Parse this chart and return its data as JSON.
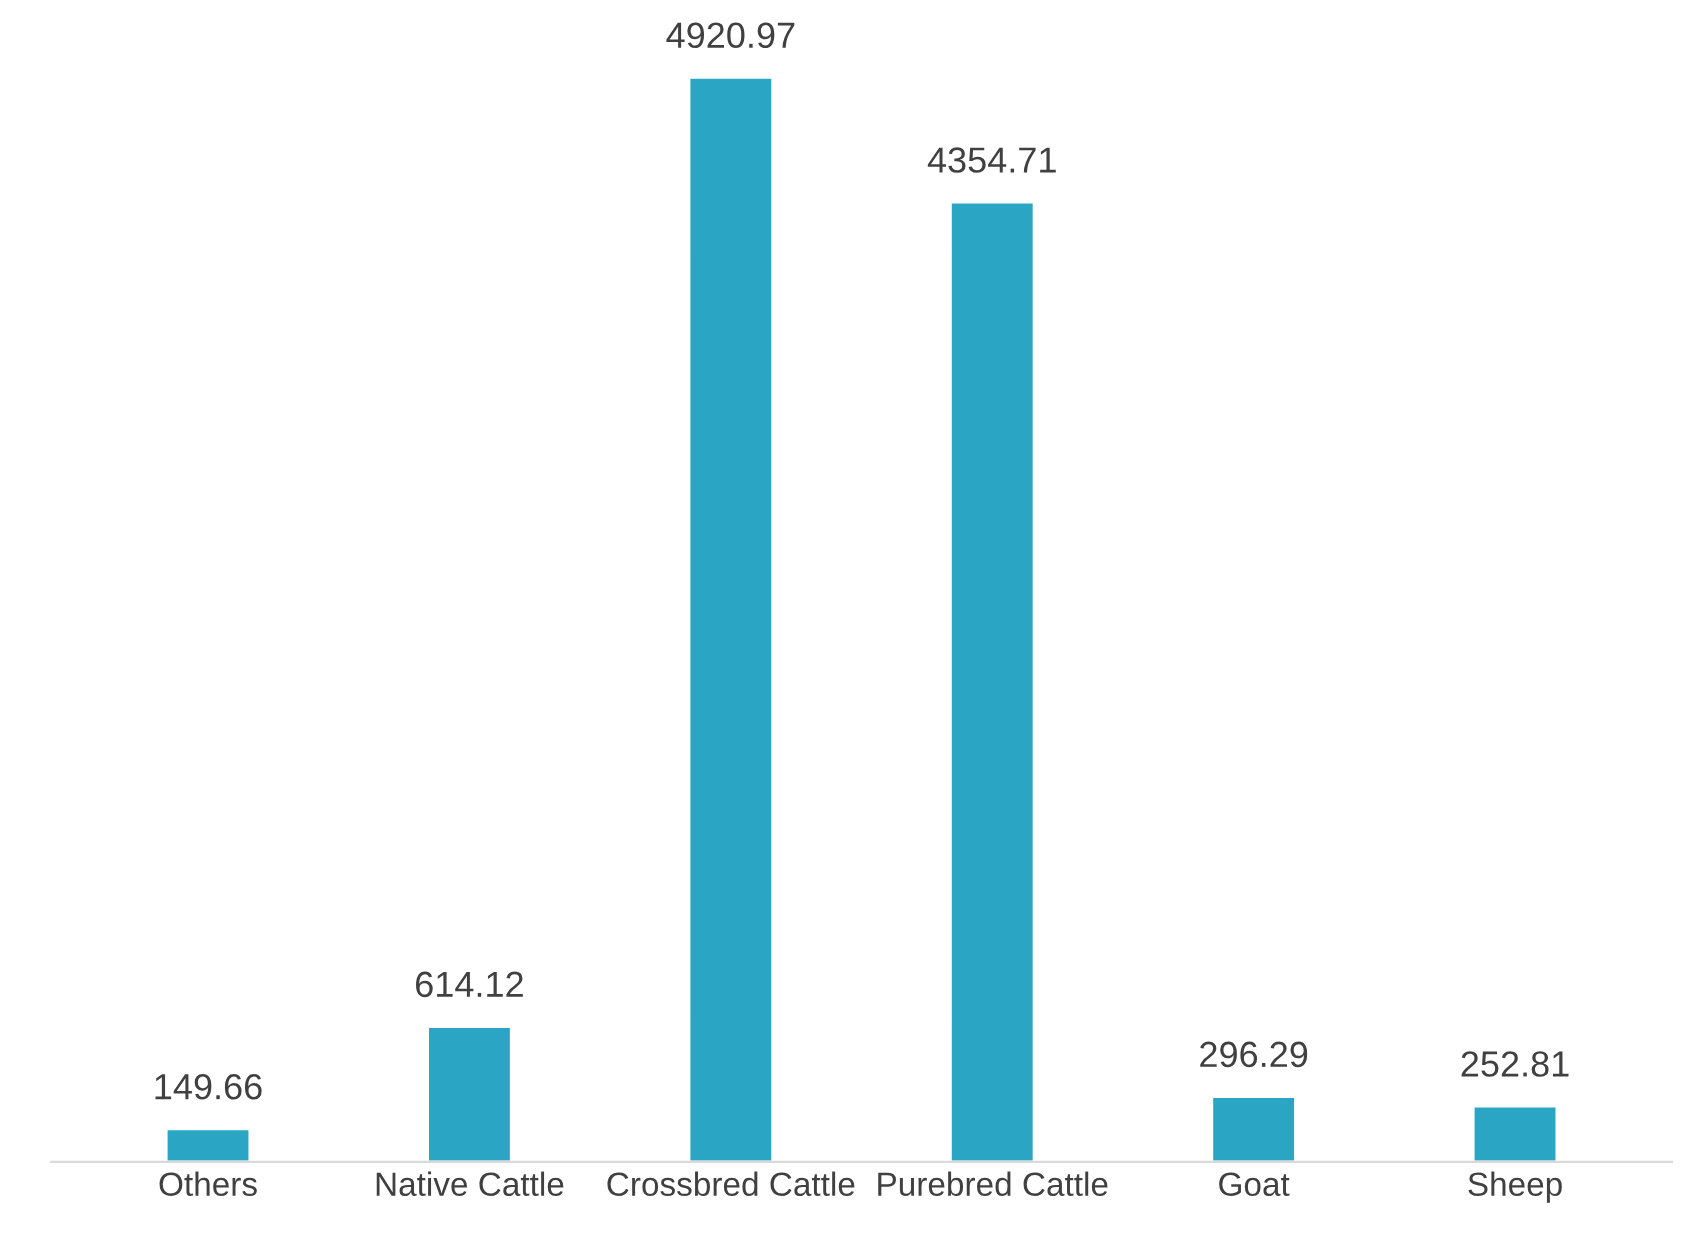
{
  "chart_data": {
    "type": "bar",
    "categories": [
      "Others",
      "Native Cattle",
      "Crossbred Cattle",
      "Purebred Cattle",
      "Goat",
      "Sheep"
    ],
    "values": [
      149.66,
      614.12,
      4920.97,
      4354.71,
      296.29,
      252.81
    ],
    "color": "#2aa6c4",
    "data_labels": true,
    "grid": false
  }
}
